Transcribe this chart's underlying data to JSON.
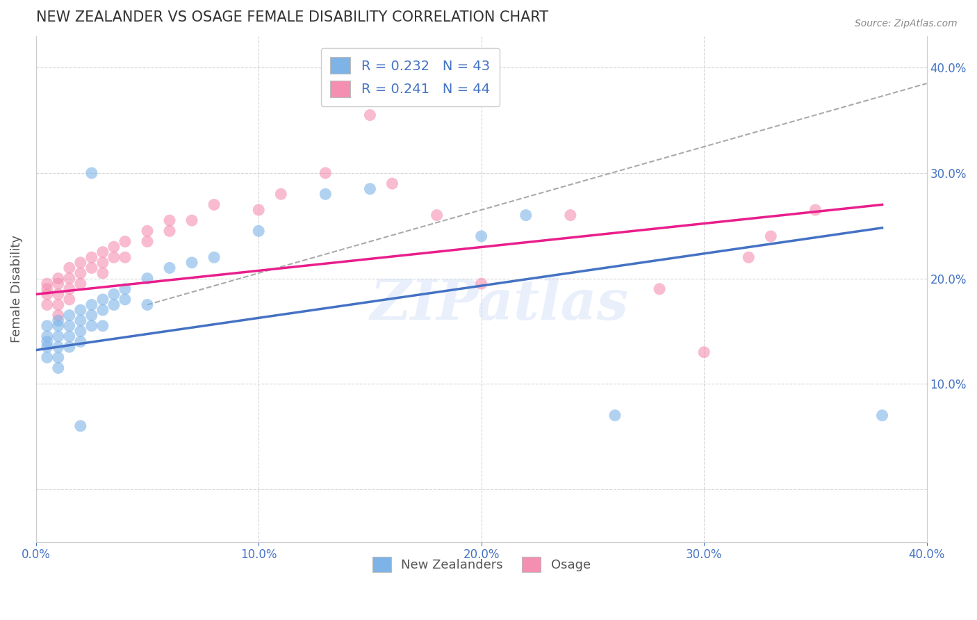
{
  "title": "NEW ZEALANDER VS OSAGE FEMALE DISABILITY CORRELATION CHART",
  "source_text": "Source: ZipAtlas.com",
  "ylabel": "Female Disability",
  "xlim": [
    0.0,
    0.4
  ],
  "ylim": [
    -0.05,
    0.43
  ],
  "xtick_labels": [
    "0.0%",
    "10.0%",
    "20.0%",
    "30.0%",
    "40.0%"
  ],
  "xtick_vals": [
    0.0,
    0.1,
    0.2,
    0.3,
    0.4
  ],
  "ytick_labels_right": [
    "10.0%",
    "20.0%",
    "30.0%",
    "40.0%"
  ],
  "ytick_vals_right": [
    0.1,
    0.2,
    0.3,
    0.4
  ],
  "nz_color": "#7eb3e8",
  "osage_color": "#f48fb1",
  "watermark_text": "ZIPatlas",
  "background_color": "#ffffff",
  "grid_color": "#cccccc",
  "nz_scatter_x": [
    0.005,
    0.005,
    0.005,
    0.005,
    0.005,
    0.01,
    0.01,
    0.01,
    0.01,
    0.01,
    0.01,
    0.015,
    0.015,
    0.015,
    0.015,
    0.02,
    0.02,
    0.02,
    0.02,
    0.025,
    0.025,
    0.025,
    0.03,
    0.03,
    0.03,
    0.035,
    0.035,
    0.04,
    0.04,
    0.05,
    0.05,
    0.06,
    0.07,
    0.08,
    0.1,
    0.13,
    0.15,
    0.2,
    0.22,
    0.26,
    0.38,
    0.02,
    0.025
  ],
  "nz_scatter_y": [
    0.135,
    0.145,
    0.155,
    0.14,
    0.125,
    0.16,
    0.155,
    0.145,
    0.135,
    0.125,
    0.115,
    0.165,
    0.155,
    0.145,
    0.135,
    0.17,
    0.16,
    0.15,
    0.14,
    0.175,
    0.165,
    0.155,
    0.18,
    0.17,
    0.155,
    0.185,
    0.175,
    0.19,
    0.18,
    0.2,
    0.175,
    0.21,
    0.215,
    0.22,
    0.245,
    0.28,
    0.285,
    0.24,
    0.26,
    0.07,
    0.07,
    0.06,
    0.3
  ],
  "osage_scatter_x": [
    0.005,
    0.005,
    0.005,
    0.005,
    0.01,
    0.01,
    0.01,
    0.01,
    0.01,
    0.015,
    0.015,
    0.015,
    0.015,
    0.02,
    0.02,
    0.02,
    0.025,
    0.025,
    0.03,
    0.03,
    0.03,
    0.035,
    0.035,
    0.04,
    0.04,
    0.05,
    0.05,
    0.06,
    0.06,
    0.07,
    0.08,
    0.1,
    0.11,
    0.13,
    0.15,
    0.16,
    0.18,
    0.2,
    0.24,
    0.28,
    0.3,
    0.32,
    0.33,
    0.35
  ],
  "osage_scatter_y": [
    0.195,
    0.19,
    0.185,
    0.175,
    0.2,
    0.195,
    0.185,
    0.175,
    0.165,
    0.21,
    0.2,
    0.19,
    0.18,
    0.215,
    0.205,
    0.195,
    0.22,
    0.21,
    0.225,
    0.215,
    0.205,
    0.23,
    0.22,
    0.235,
    0.22,
    0.245,
    0.235,
    0.255,
    0.245,
    0.255,
    0.27,
    0.265,
    0.28,
    0.3,
    0.355,
    0.29,
    0.26,
    0.195,
    0.26,
    0.19,
    0.13,
    0.22,
    0.24,
    0.265
  ],
  "nz_line_x": [
    0.0,
    0.38
  ],
  "nz_line_y": [
    0.132,
    0.248
  ],
  "osage_line_x": [
    0.0,
    0.38
  ],
  "osage_line_y": [
    0.185,
    0.27
  ],
  "dashed_line_x": [
    0.05,
    0.4
  ],
  "dashed_line_y": [
    0.175,
    0.385
  ],
  "nz_line_color": "#4472c4",
  "osage_line_color": "#e91e8c",
  "dashed_line_color": "#aaaaaa",
  "legend_nz_label": "R = 0.232   N = 43",
  "legend_osage_label": "R = 0.241   N = 44",
  "legend_bottom_nz": "New Zealanders",
  "legend_bottom_osage": "Osage",
  "title_color": "#333333",
  "axis_label_color": "#555555",
  "tick_color": "#4472c4"
}
